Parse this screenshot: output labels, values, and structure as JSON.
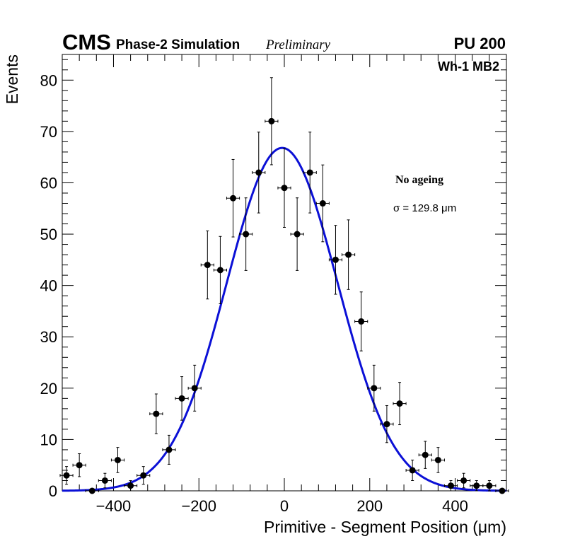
{
  "chart_data": {
    "type": "scatter",
    "header": {
      "experiment": "CMS",
      "subtitle": "Phase-2 Simulation",
      "status": "Preliminary",
      "pileup": "PU 200"
    },
    "region_label": "Wh-1 MB2",
    "legend": {
      "condition": "No ageing",
      "sigma_label": "σ = 129.8 μm"
    },
    "xlabel": "Primitive - Segment Position (μm)",
    "ylabel": "Events",
    "xlim": [
      -520,
      520
    ],
    "ylim": [
      0,
      85
    ],
    "xticks": [
      -400,
      -200,
      0,
      200,
      400
    ],
    "xtick_labels": [
      "−400",
      "−200",
      "0",
      "200",
      "400"
    ],
    "yticks": [
      0,
      10,
      20,
      30,
      40,
      50,
      60,
      70,
      80
    ],
    "ytick_labels": [
      "0",
      "10",
      "20",
      "30",
      "40",
      "50",
      "60",
      "70",
      "80"
    ],
    "bin_half_width": 15,
    "series": [
      {
        "name": "Data",
        "color": "#000000",
        "x": [
          -510,
          -480,
          -450,
          -420,
          -390,
          -360,
          -330,
          -300,
          -270,
          -240,
          -210,
          -180,
          -150,
          -120,
          -90,
          -60,
          -30,
          0,
          30,
          60,
          90,
          120,
          150,
          180,
          210,
          240,
          270,
          300,
          330,
          360,
          390,
          420,
          450,
          480,
          510
        ],
        "y": [
          3,
          5,
          0,
          2,
          6,
          1,
          3,
          15,
          8,
          18,
          20,
          44,
          43,
          57,
          50,
          62,
          72,
          59,
          50,
          62,
          56,
          45,
          46,
          33,
          20,
          13,
          17,
          4,
          7,
          6,
          1,
          2,
          1,
          1,
          0
        ]
      },
      {
        "name": "Gaussian fit",
        "color": "#0b10d6",
        "amplitude": 66.8,
        "mean": -5,
        "sigma": 129.8
      }
    ]
  }
}
